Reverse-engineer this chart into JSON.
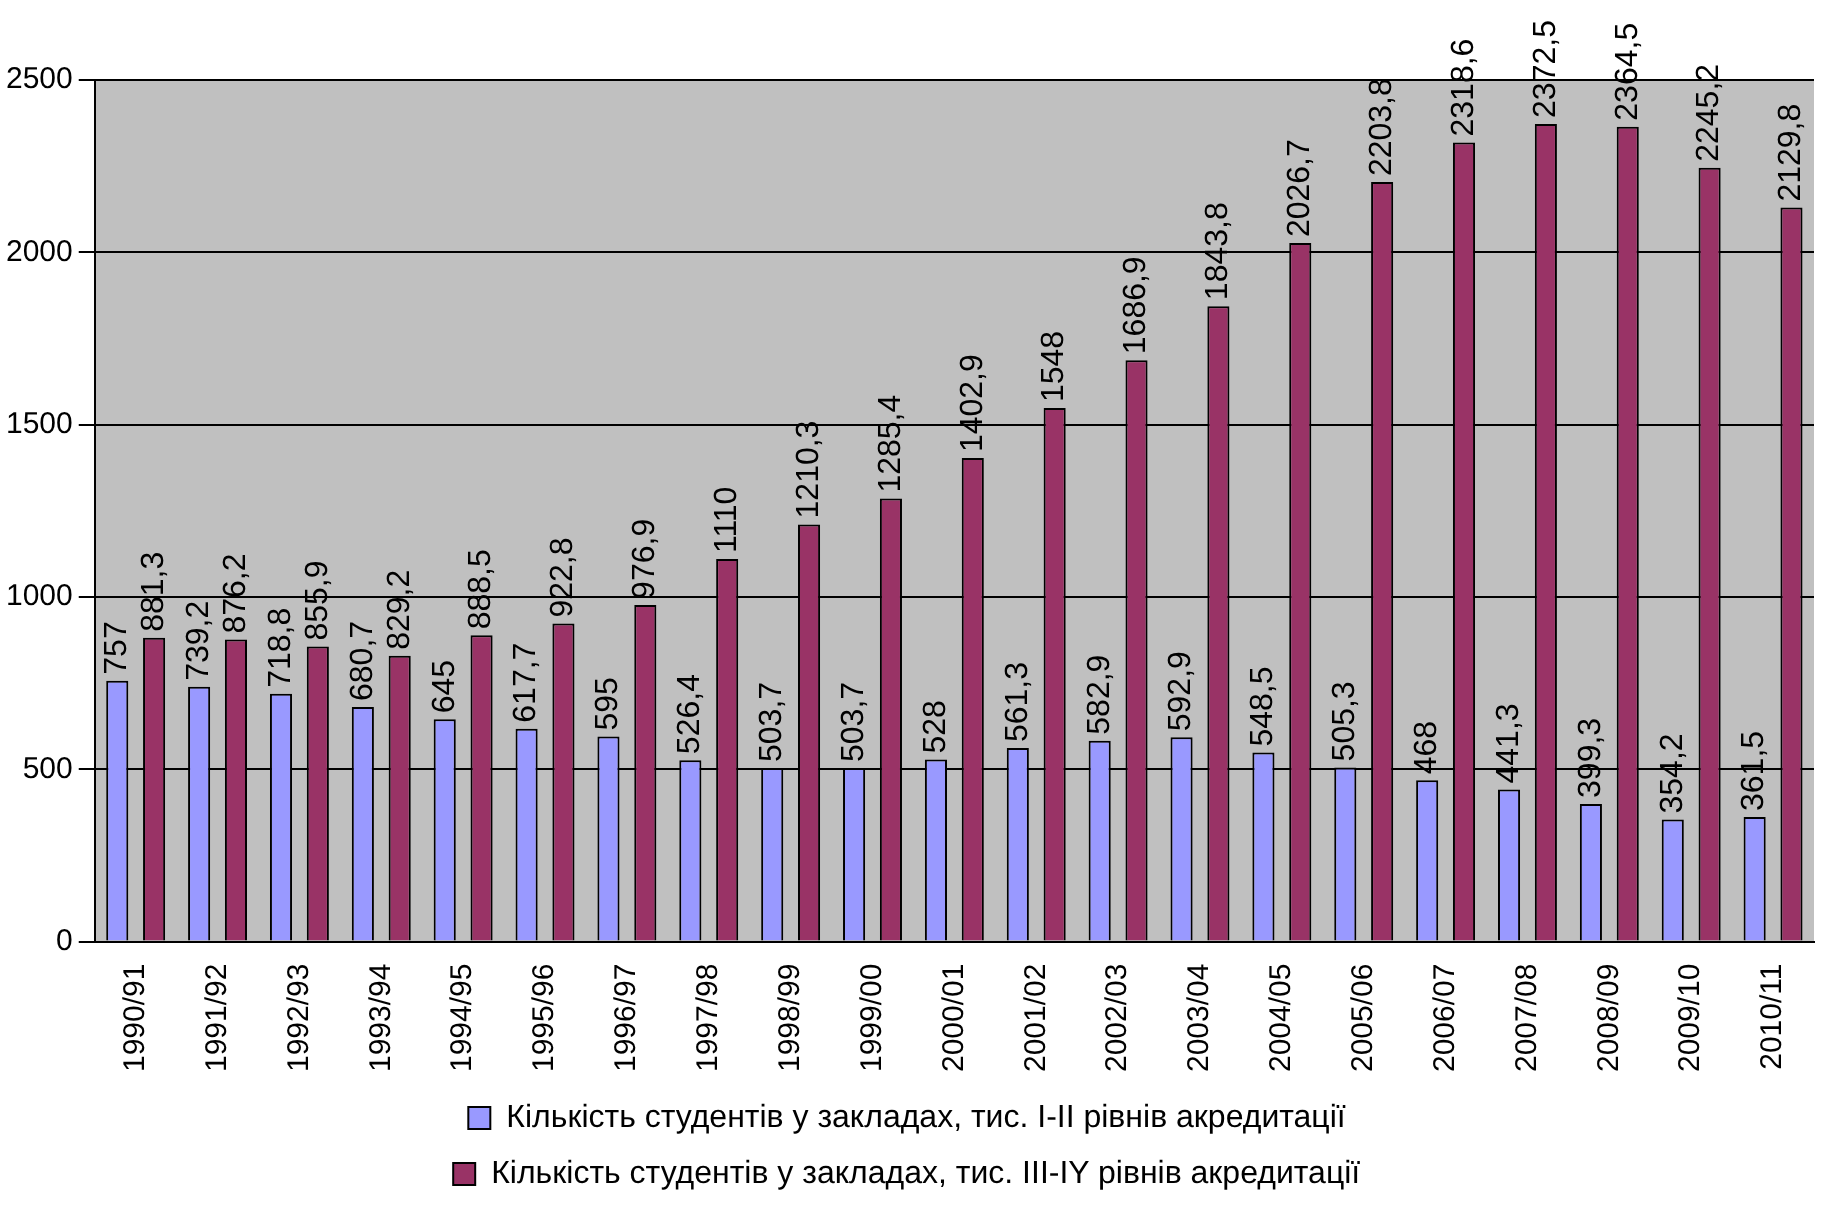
{
  "chart_data": {
    "type": "bar",
    "categories": [
      "1990/91",
      "1991/92",
      "1992/93",
      "1993/94",
      "1994/95",
      "1995/96",
      "1996/97",
      "1997/98",
      "1998/99",
      "1999/00",
      "2000/01",
      "2001/02",
      "2002/03",
      "2003/04",
      "2004/05",
      "2005/06",
      "2006/07",
      "2007/08",
      "2008/09",
      "2009/10",
      "2010/11"
    ],
    "series": [
      {
        "name": "Кількість студентів у закладах, тис. I-II рівнів акредитації",
        "color": "#9999ff",
        "values": [
          757,
          739.2,
          718.8,
          680.7,
          645,
          617.7,
          595,
          526.4,
          503.7,
          503.7,
          528,
          561.3,
          582.9,
          592.9,
          548.5,
          505.3,
          468,
          441.3,
          399.3,
          354.2,
          361.5
        ],
        "value_labels": [
          "757",
          "739,2",
          "718,8",
          "680,7",
          "645",
          "617,7",
          "595",
          "526,4",
          "503,7",
          "503,7",
          "528",
          "561,3",
          "582,9",
          "592,9",
          "548,5",
          "505,3",
          "468",
          "441,3",
          "399,3",
          "354,2",
          "361,5"
        ]
      },
      {
        "name": "Кількість студентів у закладах, тис. III-IY рівнів акредитації",
        "color": "#993366",
        "values": [
          881.3,
          876.2,
          855.9,
          829.2,
          888.5,
          922.8,
          976.9,
          1110,
          1210.3,
          1285.4,
          1402.9,
          1548,
          1686.9,
          1843.8,
          2026.7,
          2203.8,
          2318.6,
          2372.5,
          2364.5,
          2245.2,
          2129.8
        ],
        "value_labels": [
          "881,3",
          "876,2",
          "855,9",
          "829,2",
          "888,5",
          "922,8",
          "976,9",
          "1110",
          "1210,3",
          "1285,4",
          "1402,9",
          "1548",
          "1686,9",
          "1843,8",
          "2026,7",
          "2203,8",
          "2318,6",
          "2372,5",
          "2364,5",
          "2245,2",
          "2129,8"
        ]
      }
    ],
    "ylim": [
      0,
      2500
    ],
    "yticks": [
      0,
      500,
      1000,
      1500,
      2000,
      2500
    ],
    "grid": "y",
    "legend": "bottom"
  }
}
